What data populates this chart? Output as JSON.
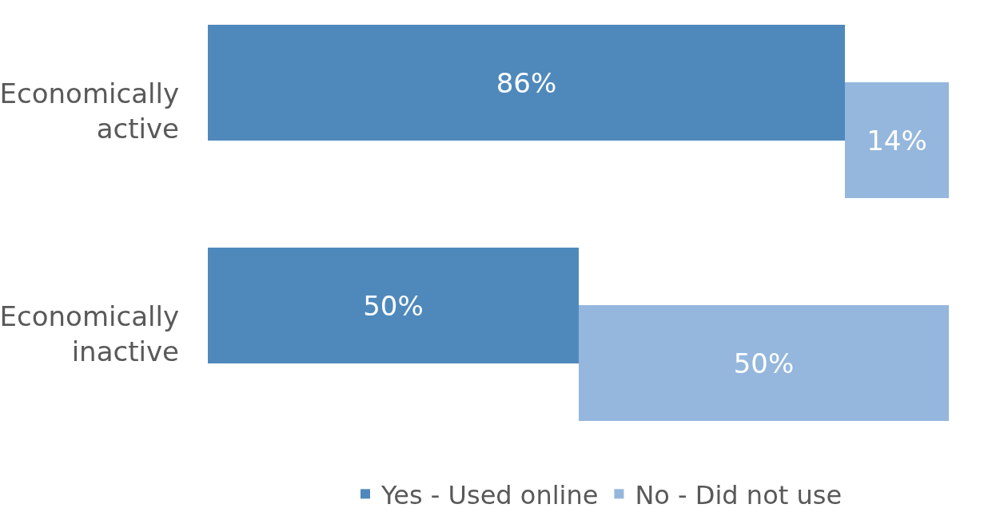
{
  "chart_data": {
    "type": "bar",
    "orientation": "horizontal",
    "stacked": true,
    "categories": [
      "Economically\nactive",
      "Economically\ninactive"
    ],
    "series": [
      {
        "name": "Yes - Used online",
        "color": "#4f89bc",
        "values": [
          86,
          50
        ],
        "value_labels": [
          "86%",
          "50%"
        ]
      },
      {
        "name": "No - Did not use",
        "color": "#95b7dd",
        "values": [
          14,
          50
        ],
        "value_labels": [
          "14%",
          "50%"
        ]
      }
    ],
    "legend": "bottom"
  }
}
